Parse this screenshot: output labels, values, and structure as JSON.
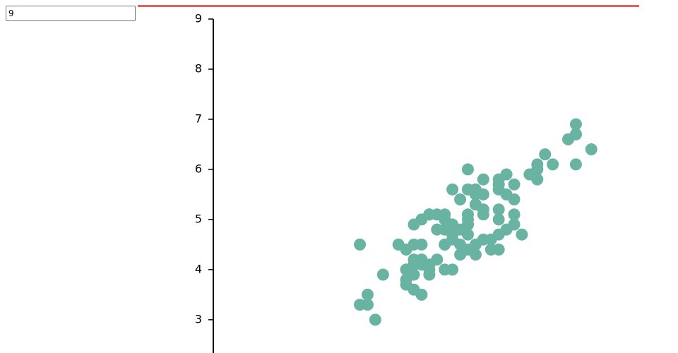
{
  "input": {
    "value": "9"
  },
  "chart_data": {
    "type": "scatter",
    "color": "#69b3a2",
    "x": [
      7.0,
      6.4,
      6.9,
      5.5,
      6.5,
      5.7,
      6.3,
      4.9,
      6.6,
      5.2,
      5.0,
      5.9,
      6.0,
      6.1,
      5.6,
      6.7,
      5.6,
      5.8,
      6.2,
      5.6,
      5.9,
      6.1,
      6.3,
      6.1,
      6.4,
      6.6,
      6.8,
      6.7,
      6.0,
      5.7,
      5.5,
      5.5,
      5.8,
      6.0,
      5.4,
      6.0,
      6.7,
      6.3,
      5.6,
      5.5,
      5.5,
      6.1,
      5.8,
      5.0,
      5.6,
      5.7,
      5.7,
      6.2,
      5.1,
      5.7,
      6.3,
      5.8,
      7.1,
      6.3,
      6.5,
      7.6,
      4.9,
      7.3,
      6.7,
      7.2,
      6.5,
      6.4,
      6.8,
      5.7,
      5.8,
      6.4,
      6.5,
      7.7,
      7.7,
      6.0,
      6.9,
      5.6,
      7.7,
      6.3,
      6.7,
      7.2,
      6.2,
      6.1,
      6.4,
      7.2,
      7.4,
      7.9,
      6.4,
      6.3,
      6.1,
      7.7,
      6.3,
      6.4,
      6.0,
      6.9,
      6.7,
      6.9,
      5.8,
      6.8,
      6.7,
      6.7,
      6.3,
      6.5,
      6.2,
      5.9
    ],
    "values": [
      4.7,
      4.5,
      4.9,
      4.0,
      4.6,
      4.5,
      4.7,
      3.3,
      4.6,
      3.9,
      3.5,
      4.2,
      4.0,
      4.7,
      3.6,
      4.4,
      4.5,
      4.1,
      4.5,
      3.9,
      4.8,
      4.0,
      4.9,
      4.7,
      4.3,
      4.4,
      4.8,
      5.0,
      4.5,
      3.5,
      3.8,
      3.7,
      3.9,
      5.1,
      4.5,
      4.5,
      4.7,
      4.4,
      4.1,
      4.0,
      4.4,
      4.6,
      4.0,
      3.3,
      4.2,
      4.2,
      4.2,
      4.3,
      3.0,
      4.1,
      6.0,
      5.1,
      5.9,
      5.6,
      5.8,
      6.6,
      4.5,
      6.3,
      5.8,
      6.1,
      5.1,
      5.3,
      5.5,
      5.0,
      5.1,
      5.3,
      5.5,
      6.7,
      6.9,
      5.0,
      5.7,
      4.9,
      6.7,
      4.9,
      5.7,
      6.0,
      4.8,
      4.9,
      5.6,
      5.8,
      6.1,
      6.4,
      5.6,
      5.1,
      5.6,
      6.1,
      5.6,
      5.5,
      4.8,
      5.4,
      5.6,
      5.1,
      5.1,
      5.9,
      5.7,
      5.2,
      5.0,
      5.2,
      5.4,
      5.1
    ],
    "xlim": [
      3.0,
      8.52
    ],
    "ylim": [
      2.35,
      9
    ],
    "yticks": [
      3,
      4,
      5,
      6,
      7,
      8,
      9
    ]
  }
}
